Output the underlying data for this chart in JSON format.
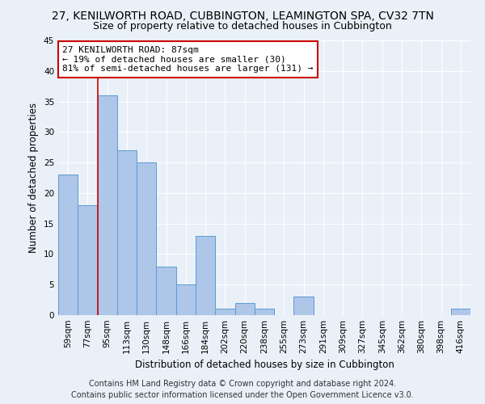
{
  "title": "27, KENILWORTH ROAD, CUBBINGTON, LEAMINGTON SPA, CV32 7TN",
  "subtitle": "Size of property relative to detached houses in Cubbington",
  "xlabel": "Distribution of detached houses by size in Cubbington",
  "ylabel": "Number of detached properties",
  "categories": [
    "59sqm",
    "77sqm",
    "95sqm",
    "113sqm",
    "130sqm",
    "148sqm",
    "166sqm",
    "184sqm",
    "202sqm",
    "220sqm",
    "238sqm",
    "255sqm",
    "273sqm",
    "291sqm",
    "309sqm",
    "327sqm",
    "345sqm",
    "362sqm",
    "380sqm",
    "398sqm",
    "416sqm"
  ],
  "values": [
    23,
    18,
    36,
    27,
    25,
    8,
    5,
    13,
    1,
    2,
    1,
    0,
    3,
    0,
    0,
    0,
    0,
    0,
    0,
    0,
    1
  ],
  "bar_color": "#aec6e8",
  "bar_edge_color": "#5b9bd5",
  "ylim": [
    0,
    45
  ],
  "yticks": [
    0,
    5,
    10,
    15,
    20,
    25,
    30,
    35,
    40,
    45
  ],
  "annotation_title": "27 KENILWORTH ROAD: 87sqm",
  "annotation_line1": "← 19% of detached houses are smaller (30)",
  "annotation_line2": "81% of semi-detached houses are larger (131) →",
  "annotation_box_color": "#ffffff",
  "annotation_border_color": "#cc0000",
  "vline_color": "#cc0000",
  "vline_x_index": 1.5,
  "footer1": "Contains HM Land Registry data © Crown copyright and database right 2024.",
  "footer2": "Contains public sector information licensed under the Open Government Licence v3.0.",
  "background_color": "#eaf0f8",
  "grid_color": "#ffffff",
  "title_fontsize": 10,
  "subtitle_fontsize": 9,
  "axis_label_fontsize": 8.5,
  "tick_fontsize": 7.5,
  "annotation_fontsize": 8,
  "footer_fontsize": 7
}
